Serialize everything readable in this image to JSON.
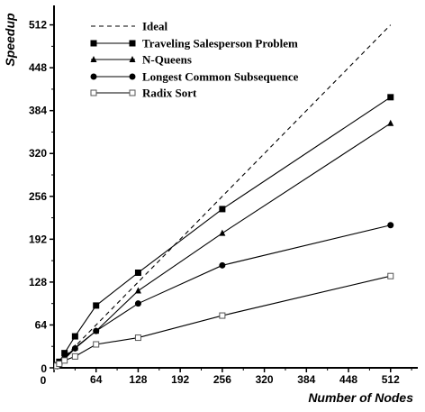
{
  "chart_data": {
    "type": "line",
    "xlabel": "Number of Nodes",
    "ylabel": "Speedup",
    "xlim": [
      0,
      540
    ],
    "ylim": [
      0,
      524
    ],
    "x_ticks": [
      0,
      64,
      128,
      192,
      256,
      320,
      384,
      448,
      512
    ],
    "y_ticks": [
      0,
      64,
      128,
      192,
      256,
      320,
      384,
      448,
      512
    ],
    "legend_position": "top-left",
    "grid": false,
    "series": [
      {
        "name": "Ideal",
        "style": "dashed",
        "marker": "none",
        "x": [
          1,
          512
        ],
        "y": [
          1,
          512
        ]
      },
      {
        "name": "Traveling Salesperson Problem",
        "style": "solid",
        "marker": "filled-square",
        "x": [
          1,
          4,
          8,
          16,
          32,
          64,
          128,
          256,
          512
        ],
        "y": [
          1,
          4,
          9,
          22,
          47,
          93,
          142,
          237,
          404
        ]
      },
      {
        "name": "N-Queens",
        "style": "solid",
        "marker": "filled-triangle",
        "x": [
          1,
          4,
          8,
          16,
          32,
          64,
          128,
          256,
          512
        ],
        "y": [
          1,
          4,
          8,
          15,
          30,
          55,
          115,
          201,
          365
        ]
      },
      {
        "name": "Longest Common Subsequence",
        "style": "solid",
        "marker": "filled-circle",
        "x": [
          1,
          4,
          8,
          16,
          32,
          64,
          128,
          256,
          512
        ],
        "y": [
          1,
          4,
          7,
          13,
          29,
          55,
          96,
          153,
          213
        ]
      },
      {
        "name": "Radix Sort",
        "style": "solid",
        "marker": "open-square",
        "x": [
          1,
          4,
          8,
          16,
          32,
          64,
          128,
          256,
          512
        ],
        "y": [
          1,
          3,
          6,
          11,
          17,
          35,
          45,
          78,
          137
        ]
      }
    ]
  }
}
